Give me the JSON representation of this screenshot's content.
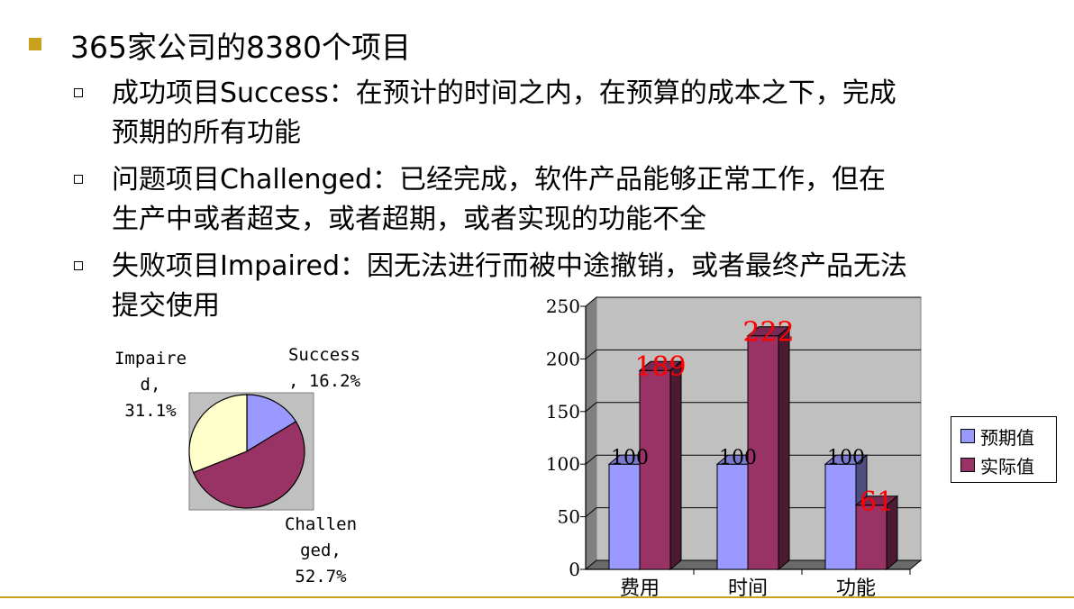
{
  "slide": {
    "title": "365家公司的8380个项目",
    "items": [
      {
        "label_line1": "成功项目Success：在预计的时间之内，在预算的成本之下，完成",
        "label_line2": "预期的所有功能"
      },
      {
        "label_line1": "问题项目Challenged：已经完成，软件产品能够正常工作，但在",
        "label_line2": "生产中或者超支，或者超期，或者实现的功能不全"
      },
      {
        "label_line1": "失败项目Impaired：因无法进行而被中途撤销，或者最终产品无法",
        "label_line2": "提交使用"
      }
    ]
  },
  "colors": {
    "accent": "#c8a21c",
    "expected": "#9999ff",
    "actual": "#993366",
    "impaired": "#ffffcc",
    "plot_bg": "#c0c0c0"
  },
  "chart_data": [
    {
      "type": "pie",
      "slices": [
        {
          "name": "Success",
          "value": 16.2,
          "label": "Success\n, 16.2%",
          "color": "#9999ff"
        },
        {
          "name": "Challenged",
          "value": 52.7,
          "label": "Challen\nged,\n52.7%",
          "color": "#993366"
        },
        {
          "name": "Impaired",
          "value": 31.1,
          "label": "Impaire\nd,\n31.1%",
          "color": "#ffffcc"
        }
      ]
    },
    {
      "type": "bar",
      "categories": [
        "费用",
        "时间",
        "功能"
      ],
      "series": [
        {
          "name": "预期值",
          "values": [
            100,
            100,
            100
          ],
          "color": "#9999ff"
        },
        {
          "name": "实际值",
          "values": [
            189,
            222,
            61
          ],
          "color": "#993366"
        }
      ],
      "ylim": [
        0,
        250
      ],
      "yticks": [
        0,
        50,
        100,
        150,
        200,
        250
      ],
      "grid": true,
      "legend": "right"
    }
  ]
}
